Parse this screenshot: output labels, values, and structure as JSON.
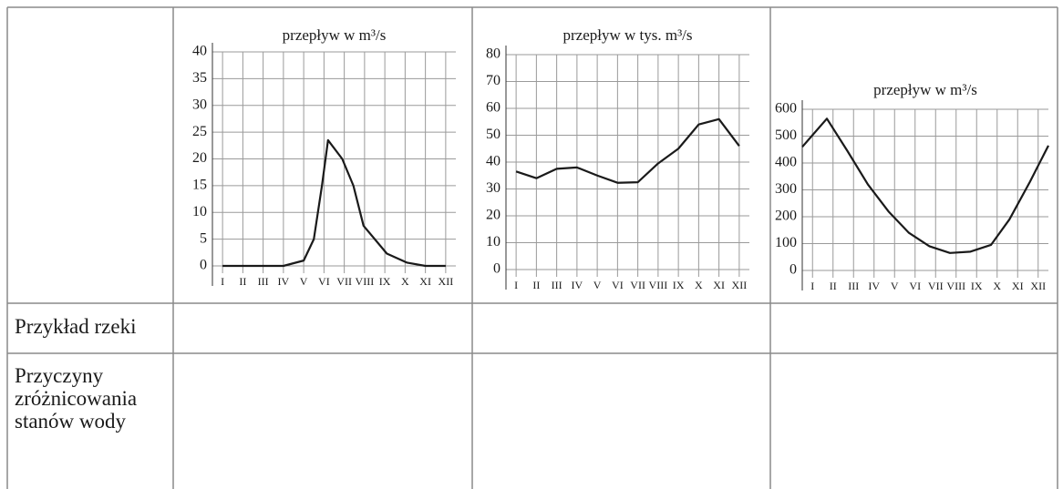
{
  "table": {
    "rows": [
      [
        "Przykład rzeki"
      ],
      [
        "Przyczyny zróżnicowania stanów wody"
      ]
    ]
  },
  "chart_data": [
    {
      "type": "line",
      "title": "przepływ w m³/s",
      "x": [
        1,
        2,
        3,
        4,
        5,
        5.5,
        5.9,
        6.2,
        6.9,
        7.45,
        7.95,
        9.1,
        10.1,
        11,
        12
      ],
      "values": [
        0,
        0,
        0,
        0,
        1,
        5,
        15,
        23.5,
        20,
        15,
        7.5,
        2.3,
        0.6,
        0,
        0
      ],
      "color": "#1a1a1a",
      "xlim": [
        0.5,
        12.5
      ],
      "ylim": [
        0,
        40
      ],
      "xticks": [
        {
          "value": 1,
          "label": "I"
        },
        {
          "value": 2,
          "label": "II"
        },
        {
          "value": 3,
          "label": "III"
        },
        {
          "value": 4,
          "label": "IV"
        },
        {
          "value": 5,
          "label": "V"
        },
        {
          "value": 6,
          "label": "VI"
        },
        {
          "value": 7,
          "label": "VII"
        },
        {
          "value": 8,
          "label": "VIII"
        },
        {
          "value": 9,
          "label": "IX"
        },
        {
          "value": 10,
          "label": "X"
        },
        {
          "value": 11,
          "label": "XI"
        },
        {
          "value": 12,
          "label": "XII"
        }
      ],
      "yticks": [
        0,
        5,
        10,
        15,
        20,
        25,
        30,
        35,
        40
      ],
      "grid": true
    },
    {
      "type": "line",
      "title": "przepływ w tys. m³/s",
      "x": [
        1,
        2,
        3,
        4,
        5,
        6,
        7,
        8,
        9,
        10,
        11,
        12
      ],
      "values": [
        36.5,
        34,
        37.5,
        38,
        35,
        32.3,
        32.5,
        39.5,
        45,
        54,
        56,
        46
      ],
      "color": "#1a1a1a",
      "xlim": [
        0.5,
        12.5
      ],
      "ylim": [
        0,
        80
      ],
      "xticks": [
        {
          "value": 1,
          "label": "I"
        },
        {
          "value": 2,
          "label": "II"
        },
        {
          "value": 3,
          "label": "III"
        },
        {
          "value": 4,
          "label": "IV"
        },
        {
          "value": 5,
          "label": "V"
        },
        {
          "value": 6,
          "label": "VI"
        },
        {
          "value": 7,
          "label": "VII"
        },
        {
          "value": 8,
          "label": "VIII"
        },
        {
          "value": 9,
          "label": "IX"
        },
        {
          "value": 10,
          "label": "X"
        },
        {
          "value": 11,
          "label": "XI"
        },
        {
          "value": 12,
          "label": "XII"
        }
      ],
      "yticks": [
        0,
        10,
        20,
        30,
        40,
        50,
        60,
        70,
        80
      ],
      "grid": true
    },
    {
      "type": "line",
      "title": "przepływ w m³/s",
      "x": [
        0.5,
        1.7,
        2.7,
        3.7,
        4.7,
        5.7,
        6.7,
        7.7,
        8.7,
        9.7,
        10.6,
        11.6,
        12.5
      ],
      "values": [
        460,
        565,
        445,
        320,
        220,
        140,
        90,
        65,
        70,
        95,
        190,
        330,
        465
      ],
      "color": "#1a1a1a",
      "xlim": [
        0.5,
        12.5
      ],
      "ylim": [
        0,
        600
      ],
      "xticks": [
        {
          "value": 1,
          "label": "I"
        },
        {
          "value": 2,
          "label": "II"
        },
        {
          "value": 3,
          "label": "III"
        },
        {
          "value": 4,
          "label": "IV"
        },
        {
          "value": 5,
          "label": "V"
        },
        {
          "value": 6,
          "label": "VI"
        },
        {
          "value": 7,
          "label": "VII"
        },
        {
          "value": 8,
          "label": "VIII"
        },
        {
          "value": 9,
          "label": "IX"
        },
        {
          "value": 10,
          "label": "X"
        },
        {
          "value": 11,
          "label": "XI"
        },
        {
          "value": 12,
          "label": "XII"
        }
      ],
      "yticks": [
        0,
        100,
        200,
        300,
        400,
        500,
        600
      ],
      "grid": true
    }
  ]
}
